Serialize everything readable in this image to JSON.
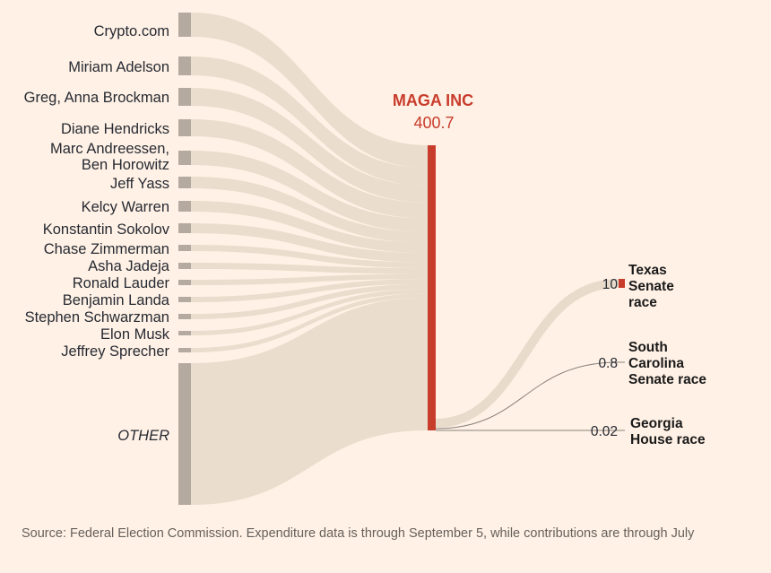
{
  "chart_data": {
    "type": "sankey",
    "colors": {
      "flow": "#e8dbcb",
      "donor_bar": "#b4aaa0",
      "hub_bar": "#c83c2c",
      "outflow": "#e8dbcb",
      "text": "#262a33"
    },
    "hub": {
      "name": "MAGA INC",
      "value_label": "400.7",
      "value": 400.7
    },
    "donors": [
      {
        "name": "Crypto.com",
        "lines": [
          "Crypto.com"
        ]
      },
      {
        "name": "Miriam Adelson",
        "lines": [
          "Miriam Adelson"
        ]
      },
      {
        "name": "Greg, Anna Brockman",
        "lines": [
          "Greg, Anna Brockman"
        ]
      },
      {
        "name": "Diane Hendricks",
        "lines": [
          "Diane Hendricks"
        ]
      },
      {
        "name": "Marc Andreessen, Ben Horowitz",
        "lines": [
          "Marc Andreessen,",
          "Ben Horowitz"
        ]
      },
      {
        "name": "Jeff Yass",
        "lines": [
          "Jeff Yass"
        ]
      },
      {
        "name": "Kelcy Warren",
        "lines": [
          "Kelcy Warren"
        ]
      },
      {
        "name": "Konstantin Sokolov",
        "lines": [
          "Konstantin Sokolov"
        ]
      },
      {
        "name": "Chase Zimmerman",
        "lines": [
          "Chase Zimmerman"
        ]
      },
      {
        "name": "Asha Jadeja",
        "lines": [
          "Asha Jadeja"
        ]
      },
      {
        "name": "Ronald Lauder",
        "lines": [
          "Ronald Lauder"
        ]
      },
      {
        "name": "Benjamin Landa",
        "lines": [
          "Benjamin Landa"
        ]
      },
      {
        "name": "Stephen Schwarzman",
        "lines": [
          "Stephen Schwarzman"
        ]
      },
      {
        "name": "Elon Musk",
        "lines": [
          "Elon Musk"
        ]
      },
      {
        "name": "Jeffrey Sprecher",
        "lines": [
          "Jeffrey Sprecher"
        ]
      },
      {
        "name": "OTHER",
        "lines": [
          "OTHER"
        ]
      }
    ],
    "outflows": [
      {
        "name": "Texas Senate race",
        "lines": [
          "Texas",
          "Senate",
          "race"
        ],
        "value": 10,
        "value_label": "10"
      },
      {
        "name": "South Carolina Senate race",
        "lines": [
          "South",
          "Carolina",
          "Senate race"
        ],
        "value": 0.8,
        "value_label": "0.8"
      },
      {
        "name": "Georgia House race",
        "lines": [
          "Georgia",
          "House race"
        ],
        "value": 0.02,
        "value_label": "0.02"
      }
    ]
  },
  "footer": {
    "source": "Source: Federal Election Commission. Expenditure data is through September 5, while contributions are through July"
  }
}
